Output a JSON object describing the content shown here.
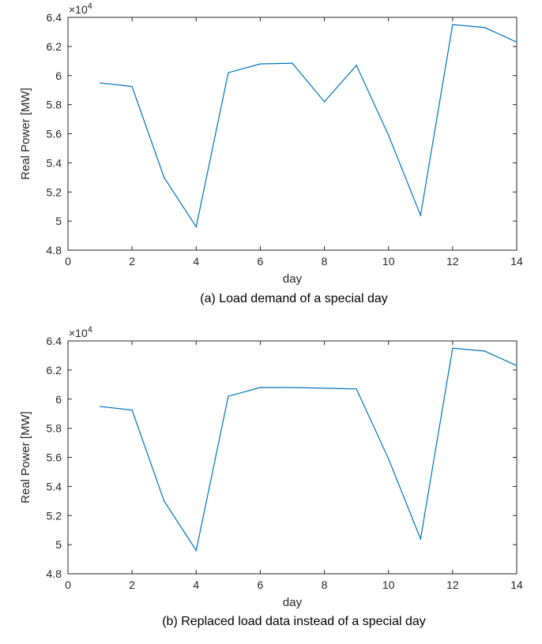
{
  "chart_data": [
    {
      "type": "line",
      "caption": "(a) Load demand of a special day",
      "xlabel": "day",
      "ylabel": "Real Power [MW]",
      "y_multiplier": "×10",
      "y_multiplier_exp": "4",
      "xlim": [
        0,
        14
      ],
      "ylim": [
        4.8,
        6.4
      ],
      "xticks": [
        0,
        2,
        4,
        6,
        8,
        10,
        12,
        14
      ],
      "yticks": [
        4.8,
        5,
        5.2,
        5.4,
        5.6,
        5.8,
        6,
        6.2,
        6.4
      ],
      "xtick_labels": [
        "0",
        "2",
        "4",
        "6",
        "8",
        "10",
        "12",
        "14"
      ],
      "ytick_labels": [
        "4.8",
        "5",
        "5.2",
        "5.4",
        "5.6",
        "5.8",
        "6",
        "6.2",
        "6.4"
      ],
      "line_color": "#0072BD",
      "x": [
        1,
        2,
        3,
        4,
        5,
        6,
        7,
        8,
        9,
        10,
        11,
        12,
        13,
        14
      ],
      "values": [
        5.95,
        5.925,
        5.3,
        4.96,
        6.02,
        6.08,
        6.085,
        5.82,
        6.07,
        5.59,
        5.04,
        6.35,
        6.33,
        6.23
      ]
    },
    {
      "type": "line",
      "caption": "(b) Replaced load data instead of a special day",
      "xlabel": "day",
      "ylabel": "Real Power [MW]",
      "y_multiplier": "×10",
      "y_multiplier_exp": "4",
      "xlim": [
        0,
        14
      ],
      "ylim": [
        4.8,
        6.4
      ],
      "xticks": [
        0,
        2,
        4,
        6,
        8,
        10,
        12,
        14
      ],
      "yticks": [
        4.8,
        5,
        5.2,
        5.4,
        5.6,
        5.8,
        6,
        6.2,
        6.4
      ],
      "xtick_labels": [
        "0",
        "2",
        "4",
        "6",
        "8",
        "10",
        "12",
        "14"
      ],
      "ytick_labels": [
        "4.8",
        "5",
        "5.2",
        "5.4",
        "5.6",
        "5.8",
        "6",
        "6.2",
        "6.4"
      ],
      "line_color": "#0072BD",
      "x": [
        1,
        2,
        3,
        4,
        5,
        6,
        7,
        8,
        9,
        10,
        11,
        12,
        13,
        14
      ],
      "values": [
        5.95,
        5.925,
        5.3,
        4.96,
        6.02,
        6.08,
        6.08,
        6.075,
        6.07,
        5.59,
        5.04,
        6.35,
        6.33,
        6.23
      ]
    }
  ]
}
